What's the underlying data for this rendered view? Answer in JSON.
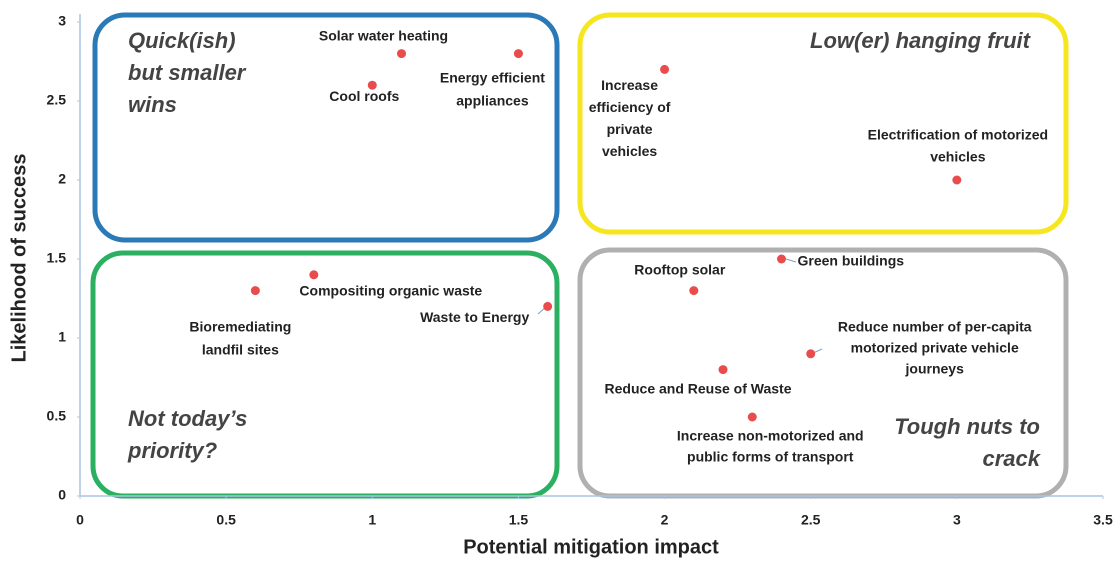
{
  "chart_data": {
    "type": "scatter",
    "xlabel": "Potential mitigation impact",
    "ylabel": "Likelihood of success",
    "xlim": [
      0,
      3.5
    ],
    "ylim": [
      0,
      3
    ],
    "xticks": [
      0,
      0.5,
      1,
      1.5,
      2,
      2.5,
      3,
      3.5
    ],
    "yticks": [
      0,
      0.5,
      1,
      1.5,
      2,
      2.5,
      3
    ],
    "grid": false,
    "color": "#e84c4c",
    "quadrants": [
      {
        "lines": [
          "Quick(ish)",
          "but smaller",
          "wins"
        ],
        "color": "#2a7ab8"
      },
      {
        "lines": [
          "Low(er) hanging fruit"
        ],
        "color": "#f5e61e"
      },
      {
        "lines": [
          "Not today’s",
          "priority?"
        ],
        "color": "#2ab060"
      },
      {
        "lines": [
          "Tough nuts to",
          "crack"
        ],
        "color": "#b0b0b0"
      }
    ],
    "points": [
      {
        "label": [
          "Solar water heating"
        ],
        "x": 1.1,
        "y": 2.8
      },
      {
        "label": [
          "Energy efficient",
          "appliances"
        ],
        "x": 1.5,
        "y": 2.8
      },
      {
        "label": [
          "Cool roofs"
        ],
        "x": 1.0,
        "y": 2.6
      },
      {
        "label": [
          "Increase",
          "efficiency of",
          "private",
          "vehicles"
        ],
        "x": 2.0,
        "y": 2.7
      },
      {
        "label": [
          "Electrification of motorized",
          "vehicles"
        ],
        "x": 3.0,
        "y": 2.0
      },
      {
        "label": [
          "Compositing organic waste"
        ],
        "x": 0.8,
        "y": 1.4
      },
      {
        "label": [
          "Bioremediating",
          "landfil sites"
        ],
        "x": 0.6,
        "y": 1.3
      },
      {
        "label": [
          "Waste to Energy"
        ],
        "x": 1.6,
        "y": 1.2
      },
      {
        "label": [
          "Green buildings"
        ],
        "x": 2.4,
        "y": 1.5
      },
      {
        "label": [
          "Rooftop solar"
        ],
        "x": 2.1,
        "y": 1.3
      },
      {
        "label": [
          "Reduce number of per-capita",
          "motorized private vehicle",
          "journeys"
        ],
        "x": 2.5,
        "y": 0.9
      },
      {
        "label": [
          "Reduce and Reuse of Waste"
        ],
        "x": 2.2,
        "y": 0.8
      },
      {
        "label": [
          "Increase non-motorized and",
          "public forms of transport"
        ],
        "x": 2.3,
        "y": 0.5
      }
    ]
  }
}
